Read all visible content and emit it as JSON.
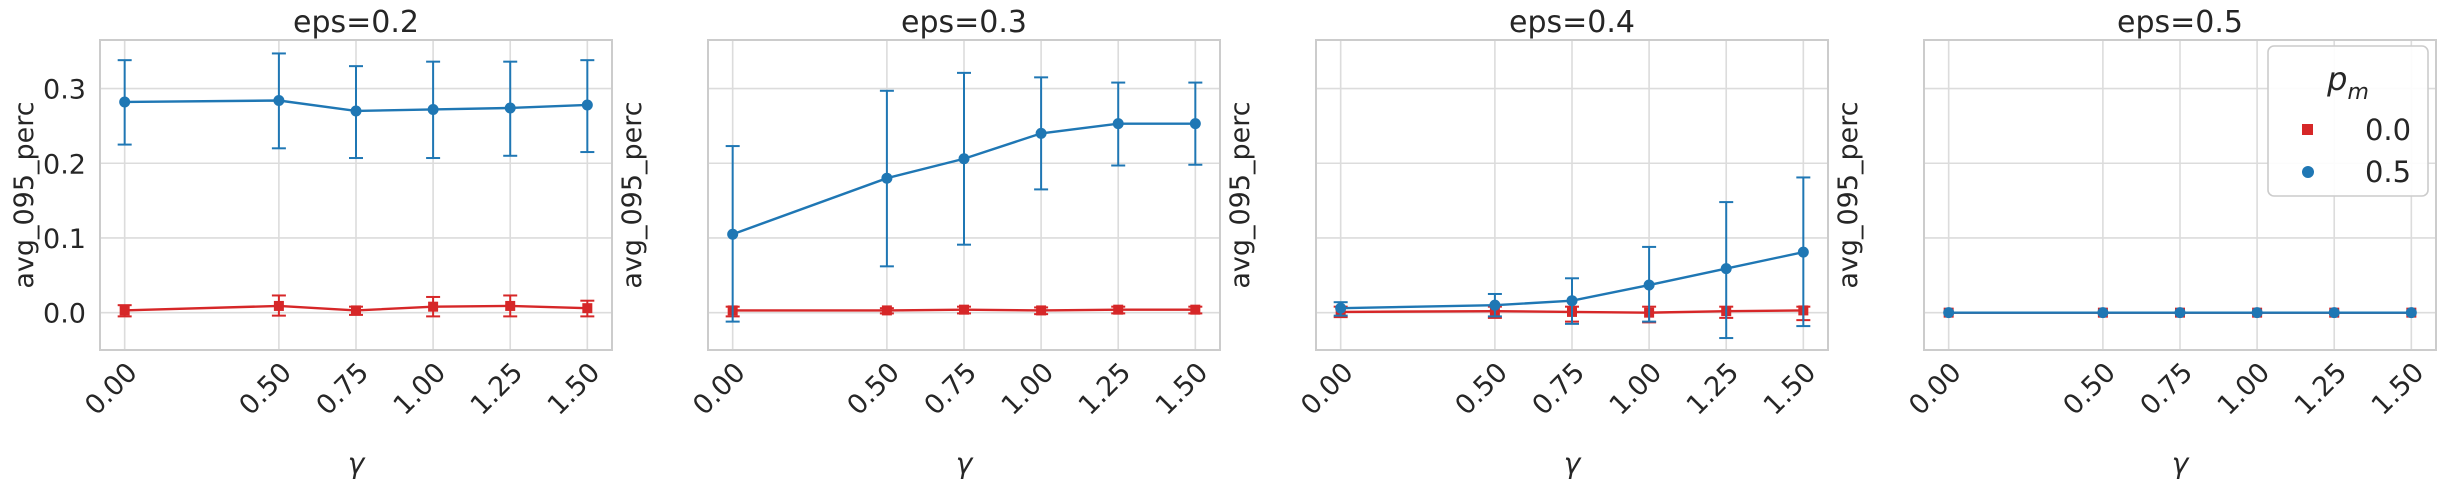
{
  "chart_data": [
    {
      "type": "line",
      "title": "eps=0.2",
      "xlabel": "γ",
      "ylabel": "avg_095_perc",
      "x": [
        0.0,
        0.5,
        0.75,
        1.0,
        1.25,
        1.5
      ],
      "x_tick_labels": [
        "0.00",
        "0.50",
        "0.75",
        "1.00",
        "1.25",
        "1.50"
      ],
      "xlim": [
        -0.08,
        1.58
      ],
      "ylim": [
        -0.05,
        0.365
      ],
      "y_ticks": [
        0.0,
        0.1,
        0.2,
        0.3
      ],
      "y_tick_labels": [
        "0.0",
        "0.1",
        "0.2",
        "0.3"
      ],
      "grid": true,
      "series": [
        {
          "name": "0.0",
          "marker": "square",
          "color": "#d62728",
          "values": [
            0.003,
            0.009,
            0.003,
            0.008,
            0.009,
            0.006
          ],
          "err_low": [
            -0.005,
            -0.004,
            -0.003,
            -0.005,
            -0.005,
            -0.005
          ],
          "err_high": [
            0.01,
            0.023,
            0.008,
            0.021,
            0.023,
            0.016
          ]
        },
        {
          "name": "0.5",
          "marker": "circle",
          "color": "#1f77b4",
          "values": [
            0.282,
            0.284,
            0.27,
            0.272,
            0.274,
            0.278
          ],
          "err_low": [
            0.225,
            0.22,
            0.207,
            0.207,
            0.21,
            0.215
          ],
          "err_high": [
            0.338,
            0.347,
            0.33,
            0.336,
            0.336,
            0.338
          ]
        }
      ]
    },
    {
      "type": "line",
      "title": "eps=0.3",
      "xlabel": "γ",
      "ylabel": "avg_095_perc",
      "x": [
        0.0,
        0.5,
        0.75,
        1.0,
        1.25,
        1.5
      ],
      "x_tick_labels": [
        "0.00",
        "0.50",
        "0.75",
        "1.00",
        "1.25",
        "1.50"
      ],
      "xlim": [
        -0.08,
        1.58
      ],
      "ylim": [
        -0.05,
        0.365
      ],
      "y_ticks": [
        0.0,
        0.1,
        0.2,
        0.3
      ],
      "y_tick_labels": [],
      "grid": true,
      "series": [
        {
          "name": "0.0",
          "marker": "square",
          "color": "#d62728",
          "values": [
            0.003,
            0.003,
            0.004,
            0.003,
            0.004,
            0.004
          ],
          "err_low": [
            -0.005,
            -0.001,
            -0.001,
            -0.002,
            -0.001,
            -0.001
          ],
          "err_high": [
            0.008,
            0.006,
            0.008,
            0.007,
            0.008,
            0.008
          ]
        },
        {
          "name": "0.5",
          "marker": "circle",
          "color": "#1f77b4",
          "values": [
            0.105,
            0.18,
            0.206,
            0.24,
            0.253,
            0.253
          ],
          "err_low": [
            -0.012,
            0.062,
            0.091,
            0.165,
            0.197,
            0.198
          ],
          "err_high": [
            0.223,
            0.297,
            0.321,
            0.315,
            0.308,
            0.308
          ]
        }
      ]
    },
    {
      "type": "line",
      "title": "eps=0.4",
      "xlabel": "γ",
      "ylabel": "avg_095_perc",
      "x": [
        0.0,
        0.5,
        0.75,
        1.0,
        1.25,
        1.5
      ],
      "x_tick_labels": [
        "0.00",
        "0.50",
        "0.75",
        "1.00",
        "1.25",
        "1.50"
      ],
      "xlim": [
        -0.08,
        1.58
      ],
      "ylim": [
        -0.05,
        0.365
      ],
      "y_ticks": [
        0.0,
        0.1,
        0.2,
        0.3
      ],
      "y_tick_labels": [],
      "grid": true,
      "series": [
        {
          "name": "0.0",
          "marker": "square",
          "color": "#d62728",
          "values": [
            0.001,
            0.002,
            0.001,
            0.0,
            0.002,
            0.003
          ],
          "err_low": [
            -0.006,
            -0.007,
            -0.012,
            -0.013,
            -0.007,
            -0.01
          ],
          "err_high": [
            0.008,
            0.008,
            0.008,
            0.008,
            0.008,
            0.008
          ]
        },
        {
          "name": "0.5",
          "marker": "circle",
          "color": "#1f77b4",
          "values": [
            0.006,
            0.01,
            0.016,
            0.037,
            0.059,
            0.081
          ],
          "err_low": [
            -0.004,
            -0.005,
            -0.015,
            -0.012,
            -0.034,
            -0.018
          ],
          "err_high": [
            0.014,
            0.025,
            0.046,
            0.088,
            0.148,
            0.181
          ]
        }
      ]
    },
    {
      "type": "line",
      "title": "eps=0.5",
      "xlabel": "γ",
      "ylabel": "avg_095_perc",
      "x": [
        0.0,
        0.5,
        0.75,
        1.0,
        1.25,
        1.5
      ],
      "x_tick_labels": [
        "0.00",
        "0.50",
        "0.75",
        "1.00",
        "1.25",
        "1.50"
      ],
      "xlim": [
        -0.08,
        1.58
      ],
      "ylim": [
        -0.05,
        0.365
      ],
      "y_ticks": [
        0.0,
        0.1,
        0.2,
        0.3
      ],
      "y_tick_labels": [],
      "grid": true,
      "legend": {
        "title": "p_m",
        "entries": [
          "0.0",
          "0.5"
        ],
        "placement": "upper-right"
      },
      "series": [
        {
          "name": "0.0",
          "marker": "square",
          "color": "#d62728",
          "values": [
            0.0,
            0.0,
            0.0,
            0.0,
            0.0,
            0.0
          ],
          "err_low": [
            0.0,
            0.0,
            0.0,
            0.0,
            0.0,
            0.0
          ],
          "err_high": [
            0.0,
            0.0,
            0.0,
            0.0,
            0.0,
            0.0
          ]
        },
        {
          "name": "0.5",
          "marker": "circle",
          "color": "#1f77b4",
          "values": [
            0.0,
            0.0,
            0.0,
            0.0,
            0.0,
            0.0
          ],
          "err_low": [
            0.0,
            0.0,
            0.0,
            0.0,
            0.0,
            0.0
          ],
          "err_high": [
            0.0,
            0.0,
            0.0,
            0.0,
            0.0,
            0.0
          ]
        }
      ]
    }
  ]
}
